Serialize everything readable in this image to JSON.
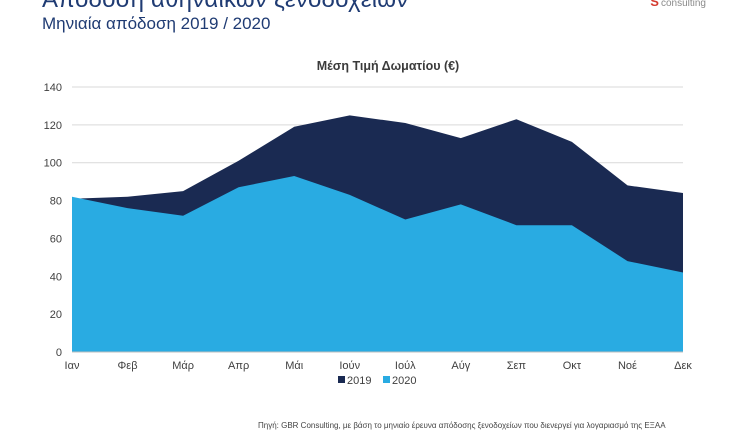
{
  "header": {
    "title": "Απόδοση αθηναϊκών ξενοδοχείων",
    "subtitle": "Μηνιαία απόδοση 2019 / 2020",
    "logo_text": "consulting"
  },
  "footer": {
    "source": "Πηγή: GBR Consulting, με βάση το μηνιαίο έρευνα απόδοσης ξενοδοχείων που διενεργεί για λογαριασμό της ΕΞΑΑ"
  },
  "colors": {
    "series_2019": "#1a2a52",
    "series_2020": "#29abe2"
  },
  "chart_data": {
    "type": "area",
    "title": "Μέση Τιμή Δωματίου (€)",
    "categories": [
      "Ιαν",
      "Φεβ",
      "Μάρ",
      "Απρ",
      "Μάι",
      "Ιούν",
      "Ιούλ",
      "Αύγ",
      "Σεπ",
      "Οκτ",
      "Νοέ",
      "Δεκ"
    ],
    "series": [
      {
        "name": "2019",
        "values": [
          81,
          82,
          85,
          101,
          119,
          125,
          121,
          113,
          123,
          111,
          88,
          84
        ]
      },
      {
        "name": "2020",
        "values": [
          82,
          76,
          72,
          87,
          93,
          83,
          70,
          78,
          67,
          67,
          48,
          42
        ]
      }
    ],
    "ylim": [
      0,
      140
    ],
    "yticks": [
      0,
      20,
      40,
      60,
      80,
      100,
      120,
      140
    ],
    "grid": true,
    "legend": "bottom"
  }
}
